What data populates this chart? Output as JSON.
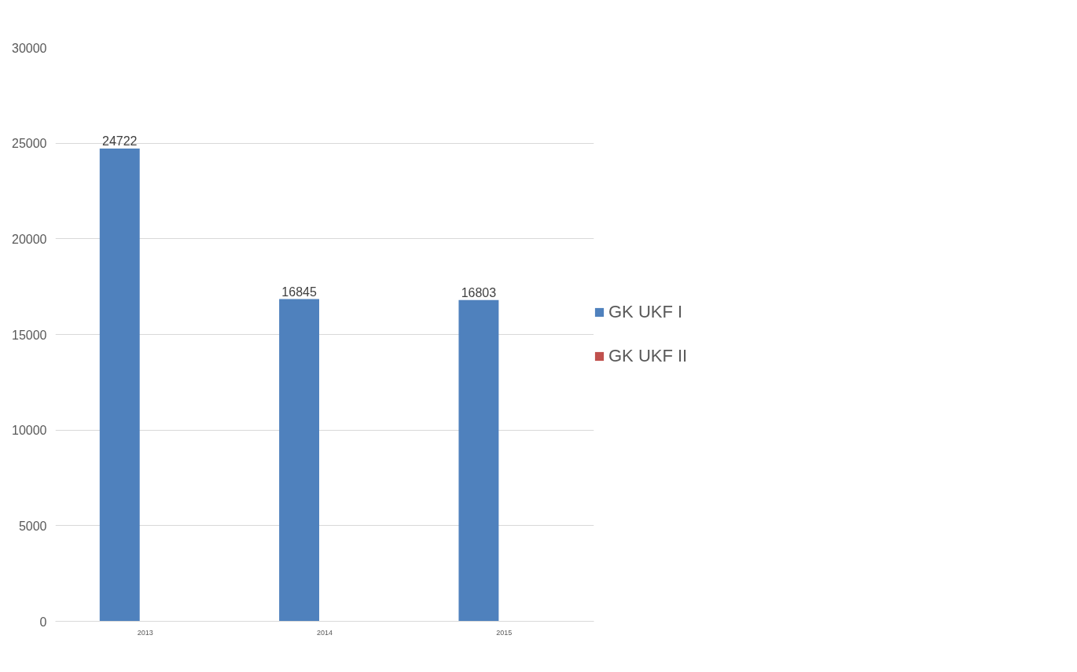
{
  "chart_data": {
    "type": "bar",
    "categories": [
      "2013",
      "2014",
      "2015"
    ],
    "series": [
      {
        "name": "GK UKF I",
        "color": "#4f81bd",
        "values": [
          24722,
          16845,
          16803
        ]
      },
      {
        "name": "GK UKF II",
        "color": "#c0504d",
        "values": [
          null,
          null,
          null
        ]
      }
    ],
    "ylim": [
      0,
      30000
    ],
    "yticks": [
      0,
      5000,
      10000,
      15000,
      20000,
      25000,
      30000
    ],
    "grid": "y",
    "legend": "right",
    "data_labels": true
  }
}
